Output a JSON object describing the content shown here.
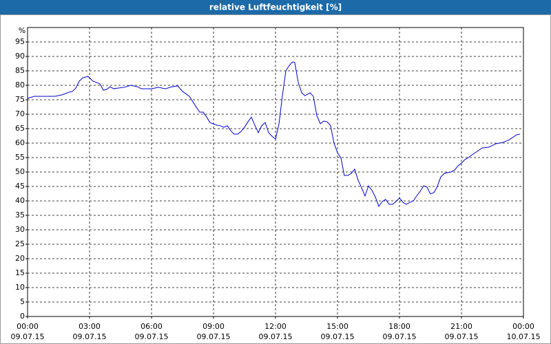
{
  "chart_data": {
    "type": "line",
    "title": "relative Luftfeuchtigkeit [%]",
    "y_label": "%",
    "x": [
      0,
      0.33,
      0.67,
      1,
      1.33,
      1.67,
      2,
      2.17,
      2.33,
      2.5,
      2.67,
      2.93,
      3.17,
      3.33,
      3.5,
      3.67,
      3.83,
      4,
      4.17,
      4.33,
      4.67,
      5,
      5.33,
      5.5,
      6,
      6.33,
      6.67,
      7,
      7.27,
      7.5,
      7.83,
      8.17,
      8.33,
      8.5,
      8.67,
      8.83,
      9.17,
      9.33,
      9.5,
      9.67,
      9.83,
      10,
      10.17,
      10.33,
      10.5,
      10.67,
      10.83,
      11,
      11.17,
      11.33,
      11.5,
      11.67,
      11.83,
      12,
      12.17,
      12.33,
      12.5,
      12.67,
      12.83,
      12.93,
      13.1,
      13.27,
      13.43,
      13.67,
      13.83,
      14,
      14.17,
      14.33,
      14.5,
      14.67,
      14.83,
      15,
      15.17,
      15.33,
      15.5,
      15.67,
      15.83,
      16,
      16.17,
      16.33,
      16.5,
      16.67,
      16.83,
      17,
      17.17,
      17.33,
      17.5,
      17.67,
      17.83,
      18,
      18.17,
      18.33,
      18.5,
      18.67,
      18.83,
      19,
      19.17,
      19.33,
      19.5,
      19.67,
      19.83,
      20,
      20.17,
      20.33,
      20.5,
      20.67,
      20.83,
      21,
      21.17,
      21.33,
      21.67,
      22,
      22.33,
      22.67,
      23,
      23.33,
      23.67,
      23.83
    ],
    "series": [
      {
        "name": "relative Luftfeuchtigkeit",
        "color": "#0000cc",
        "values": [
          75.5,
          76.2,
          76.2,
          76.2,
          76.2,
          76.7,
          77.6,
          77.9,
          79,
          81.4,
          82.6,
          83.1,
          81.4,
          81,
          80.5,
          78.3,
          78.6,
          79.5,
          78.8,
          79,
          79.3,
          80,
          79.5,
          78.8,
          78.8,
          79.3,
          78.8,
          79.5,
          79.8,
          77.9,
          76.2,
          72.4,
          70.7,
          70.7,
          69,
          67.1,
          66.2,
          66,
          65.5,
          66,
          64.3,
          63.1,
          63.1,
          64,
          65.5,
          67.4,
          69,
          66.2,
          63.6,
          66,
          67.1,
          63.6,
          62.4,
          61.4,
          66.7,
          76.2,
          85,
          86.9,
          88.1,
          87.9,
          81,
          77.4,
          76.4,
          77.4,
          76.2,
          69.5,
          66.7,
          67.6,
          67.4,
          66,
          60,
          56.7,
          54.8,
          48.8,
          48.8,
          49.5,
          51,
          47.1,
          44.5,
          41.7,
          45.2,
          43.6,
          41.4,
          38.1,
          39.8,
          40.5,
          38.8,
          38.8,
          39.8,
          41,
          39.5,
          38.8,
          39.5,
          40,
          41.7,
          43.3,
          45.2,
          44.8,
          42.4,
          42.9,
          45,
          48.3,
          49.5,
          49.8,
          50,
          50.7,
          52.1,
          53.1,
          54.3,
          55,
          56.7,
          58.3,
          58.6,
          59.8,
          60.2,
          61.2,
          62.9,
          63.1
        ]
      }
    ],
    "xlim": [
      0,
      24
    ],
    "xticks": [
      {
        "value": 0,
        "label": "00:00",
        "date": "09.07.15"
      },
      {
        "value": 3,
        "label": "03:00",
        "date": "09.07.15"
      },
      {
        "value": 6,
        "label": "06:00",
        "date": "09.07.15"
      },
      {
        "value": 9,
        "label": "09:00",
        "date": "09.07.15"
      },
      {
        "value": 12,
        "label": "12:00",
        "date": "09.07.15"
      },
      {
        "value": 15,
        "label": "15:00",
        "date": "09.07.15"
      },
      {
        "value": 18,
        "label": "18:00",
        "date": "09.07.15"
      },
      {
        "value": 21,
        "label": "21:00",
        "date": "09.07.15"
      },
      {
        "value": 24,
        "label": "00:00",
        "date": "10.07.15"
      }
    ],
    "ylim": [
      0,
      100
    ],
    "yticks": [
      0,
      5,
      10,
      15,
      20,
      25,
      30,
      35,
      40,
      45,
      50,
      55,
      60,
      65,
      70,
      75,
      80,
      85,
      90,
      95
    ],
    "grid": true
  }
}
